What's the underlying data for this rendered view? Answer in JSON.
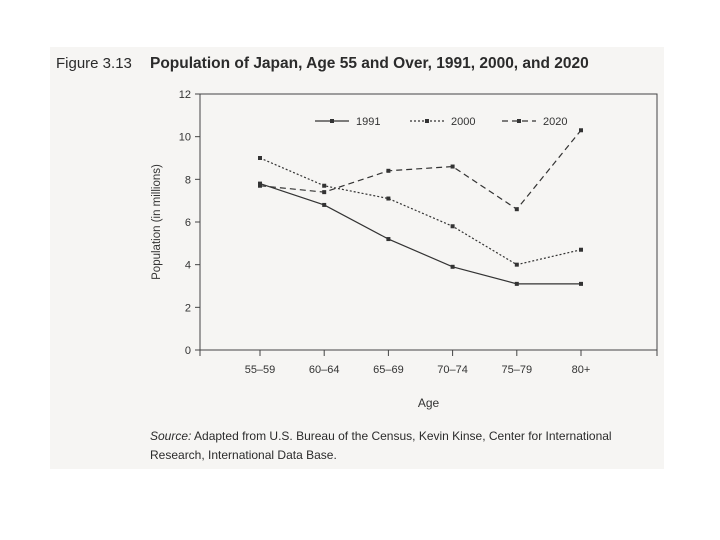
{
  "figure": {
    "label": "Figure 3.13",
    "title": "Population of Japan, Age 55 and Over, 1991, 2000, and 2020",
    "source_lead": "Source:",
    "source_text": " Adapted from U.S. Bureau of the Census, Kevin Kinse, Center for International Research, International Data Base."
  },
  "chart_data": {
    "type": "line",
    "title": "Population of Japan, Age 55 and Over, 1991, 2000, and 2020",
    "xlabel": "Age",
    "ylabel": "Population (in millions)",
    "categories": [
      "55–59",
      "60–64",
      "65–69",
      "70–74",
      "75–79",
      "80+"
    ],
    "ylim": [
      0,
      12
    ],
    "yticks": [
      0,
      2,
      4,
      6,
      8,
      10,
      12
    ],
    "grid": false,
    "legend_position": "top-center",
    "series": [
      {
        "name": "1991",
        "style": "solid",
        "values": [
          7.8,
          6.8,
          5.2,
          3.9,
          3.1,
          3.1
        ]
      },
      {
        "name": "2000",
        "style": "dotted",
        "values": [
          9.0,
          7.7,
          7.1,
          5.8,
          4.0,
          4.7
        ]
      },
      {
        "name": "2020",
        "style": "dashed",
        "values": [
          7.7,
          7.4,
          8.4,
          8.6,
          6.6,
          10.3
        ]
      }
    ]
  }
}
